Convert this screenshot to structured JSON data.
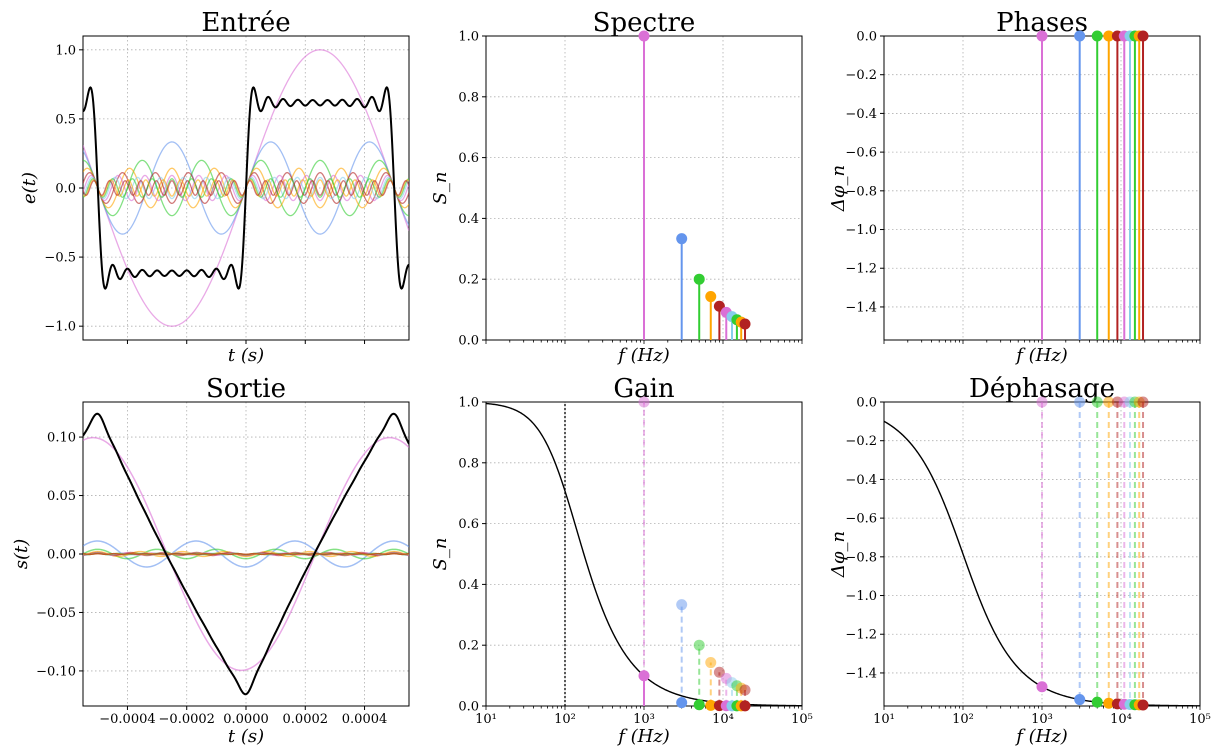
{
  "figure": {
    "palette": [
      "#da70d6",
      "#6495ed",
      "#32cd32",
      "#ffa500",
      "#b22222",
      "#da70d6",
      "#87ceeb",
      "#32cd32",
      "#ffa500",
      "#b22222"
    ],
    "harmonic_frequencies_hz": [
      1000,
      3000,
      5000,
      7000,
      9000,
      11000,
      13000,
      15000,
      17000,
      19000
    ],
    "harmonic_amplitudes": [
      1.0,
      0.3333,
      0.2,
      0.1429,
      0.1111,
      0.0909,
      0.0769,
      0.0667,
      0.0588,
      0.0526
    ],
    "cutoff_frequency_hz": 100,
    "grid": true
  },
  "chart_data": [
    {
      "id": "entree",
      "type": "line",
      "title": "Entrée",
      "xlabel": "t (s)",
      "ylabel": "e(t)",
      "xlim": [
        -0.00055,
        0.00055
      ],
      "ylim": [
        -1.1,
        1.1
      ],
      "yticks": [
        "−1.0",
        "−0.5",
        "0.0",
        "0.5",
        "1.0"
      ],
      "ytick_values": [
        -1.0,
        -0.5,
        0.0,
        0.5,
        1.0
      ],
      "xticks": [],
      "series": [
        {
          "kind": "harmonics",
          "amplitudes": [
            1.0,
            0.3333,
            0.2,
            0.1429,
            0.1111,
            0.0909,
            0.0769,
            0.0667,
            0.0588,
            0.0526
          ]
        },
        {
          "kind": "sum",
          "color": "#000000"
        }
      ]
    },
    {
      "id": "spectre",
      "type": "stem",
      "title": "Spectre",
      "xlabel": "f (Hz)",
      "ylabel": "S_n",
      "xscale": "log",
      "xlim": [
        10,
        100000
      ],
      "ylim": [
        0,
        1.0
      ],
      "yticks": [
        "0.0",
        "0.2",
        "0.4",
        "0.6",
        "0.8",
        "1.0"
      ],
      "ytick_values": [
        0,
        0.2,
        0.4,
        0.6,
        0.8,
        1.0
      ],
      "x": [
        1000,
        3000,
        5000,
        7000,
        9000,
        11000,
        13000,
        15000,
        17000,
        19000
      ],
      "values": [
        1.0,
        0.3333,
        0.2,
        0.1429,
        0.1111,
        0.0909,
        0.0769,
        0.0667,
        0.0588,
        0.0526
      ]
    },
    {
      "id": "phases",
      "type": "stem",
      "title": "Phases",
      "xlabel": "f (Hz)",
      "ylabel": "Δφ_n",
      "xscale": "log",
      "xlim": [
        10,
        100000
      ],
      "ylim": [
        -1.5708,
        0
      ],
      "yticks": [
        "−1.4",
        "−1.2",
        "−1.0",
        "−0.8",
        "−0.6",
        "−0.4",
        "−0.2",
        "0.0"
      ],
      "ytick_values": [
        -1.4,
        -1.2,
        -1.0,
        -0.8,
        -0.6,
        -0.4,
        -0.2,
        0.0
      ],
      "x": [
        1000,
        3000,
        5000,
        7000,
        9000,
        11000,
        13000,
        15000,
        17000,
        19000
      ],
      "values": [
        0,
        0,
        0,
        0,
        0,
        0,
        0,
        0,
        0,
        0
      ]
    },
    {
      "id": "sortie",
      "type": "line",
      "title": "Sortie",
      "xlabel": "t (s)",
      "ylabel": "s(t)",
      "xlim": [
        -0.00055,
        0.00055
      ],
      "ylim": [
        -0.13,
        0.13
      ],
      "xticks": [
        "−0.0004",
        "−0.0002",
        "0.0000",
        "0.0002",
        "0.0004"
      ],
      "xtick_values": [
        -0.0004,
        -0.0002,
        0.0,
        0.0002,
        0.0004
      ],
      "yticks": [
        "−0.10",
        "−0.05",
        "0.00",
        "0.05",
        "0.10"
      ],
      "ytick_values": [
        -0.1,
        -0.05,
        0.0,
        0.05,
        0.1
      ],
      "series": [
        {
          "kind": "filtered-harmonics"
        },
        {
          "kind": "filtered-sum",
          "color": "#000000"
        }
      ]
    },
    {
      "id": "gain",
      "type": "line",
      "title": "Gain",
      "xlabel": "f (Hz)",
      "ylabel": "S_n",
      "xscale": "log",
      "xlim": [
        10,
        100000
      ],
      "ylim": [
        0,
        1.0
      ],
      "xticks": [
        "10¹",
        "10²",
        "10³",
        "10⁴",
        "10⁵"
      ],
      "xtick_values": [
        10,
        100,
        1000,
        10000,
        100000
      ],
      "yticks": [
        "0.0",
        "0.2",
        "0.4",
        "0.6",
        "0.8",
        "1.0"
      ],
      "ytick_values": [
        0,
        0.2,
        0.4,
        0.6,
        0.8,
        1.0
      ],
      "input_values": [
        1.0,
        0.3333,
        0.2,
        0.1429,
        0.1111,
        0.0909,
        0.0769,
        0.0667,
        0.0588,
        0.0526
      ],
      "output_values": [
        0.0995,
        0.0111,
        0.004,
        0.002,
        0.0012,
        0.0008,
        0.0006,
        0.0004,
        0.0003,
        0.0003
      ]
    },
    {
      "id": "dephasage",
      "type": "line",
      "title": "Déphasage",
      "xlabel": "f (Hz)",
      "ylabel": "Δφ_n",
      "xscale": "log",
      "xlim": [
        10,
        100000
      ],
      "ylim": [
        -1.5708,
        0
      ],
      "xticks": [
        "10¹",
        "10²",
        "10³",
        "10⁴",
        "10⁵"
      ],
      "xtick_values": [
        10,
        100,
        1000,
        10000,
        100000
      ],
      "yticks": [
        "−1.4",
        "−1.2",
        "−1.0",
        "−0.8",
        "−0.6",
        "−0.4",
        "−0.2",
        "0.0"
      ],
      "ytick_values": [
        -1.4,
        -1.2,
        -1.0,
        -0.8,
        -0.6,
        -0.4,
        -0.2,
        0.0
      ],
      "x": [
        1000,
        3000,
        5000,
        7000,
        9000,
        11000,
        13000,
        15000,
        17000,
        19000
      ],
      "values": [
        -1.4711,
        -1.5375,
        -1.5508,
        -1.5565,
        -1.5597,
        -1.5617,
        -1.5631,
        -1.5641,
        -1.5649,
        -1.5655
      ]
    }
  ]
}
